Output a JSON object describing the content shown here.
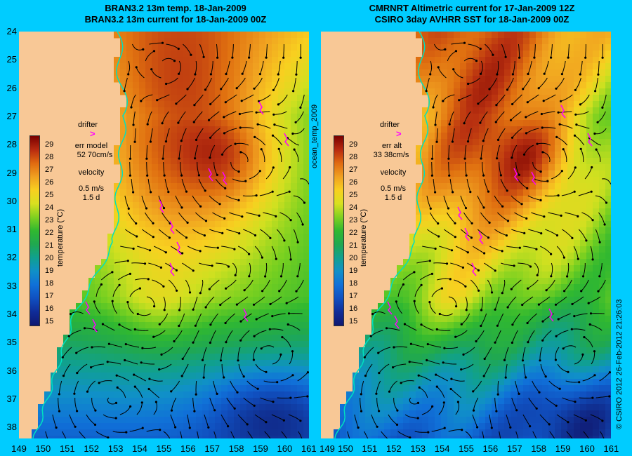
{
  "left_panel": {
    "title_line1": "BRAN3.2 13m temp. 18-Jan-2009",
    "title_line2": "BRAN3.2 13m current for 18-Jan-2009 00Z",
    "drifter_label": "drifter",
    "err_label_line1": "err model",
    "err_label_line2": "52 70cm/s",
    "velocity_label": "velocity",
    "velocity_value": "0.5 m/s",
    "velocity_time": "1.5 d"
  },
  "right_panel": {
    "title_line1": "CMRNRT Altimetric current for 17-Jan-2009 12Z",
    "title_line2": "CSIRO 3day AVHRR SST for 18-Jan-2009 00Z",
    "drifter_label": "drifter",
    "err_label_line1": "err alt",
    "err_label_line2": "33 38cm/s",
    "velocity_label": "velocity",
    "velocity_value": "0.5 m/s",
    "velocity_time": "1.5 d"
  },
  "colorbar": {
    "label": "temperature (°C)",
    "ticks": [
      "29",
      "28",
      "27",
      "26",
      "25",
      "24",
      "23",
      "22",
      "21",
      "20",
      "19",
      "18",
      "17",
      "16",
      "15"
    ]
  },
  "y_axis": {
    "ticks": [
      "24",
      "25",
      "26",
      "27",
      "28",
      "29",
      "30",
      "31",
      "32",
      "33",
      "34",
      "35",
      "36",
      "37",
      "38"
    ]
  },
  "x_axis": {
    "left_ticks": [
      "149",
      "150",
      "151",
      "152",
      "153",
      "154",
      "155",
      "156",
      "157",
      "158",
      "159",
      "160",
      "161"
    ],
    "right_ticks": [
      "150",
      "151",
      "152",
      "153",
      "154",
      "155",
      "156",
      "157",
      "158",
      "159",
      "160",
      "161"
    ],
    "right_first_tick": "149"
  },
  "side_labels": {
    "middle": "ocean_temp_2009",
    "right": "© CSIRO 2012   26-Feb-2012 21:26:03"
  },
  "colors": {
    "background": "#00ccff",
    "land": "#f8c896",
    "drifter": "#ff00ff",
    "coastline": "#00e0c0"
  }
}
